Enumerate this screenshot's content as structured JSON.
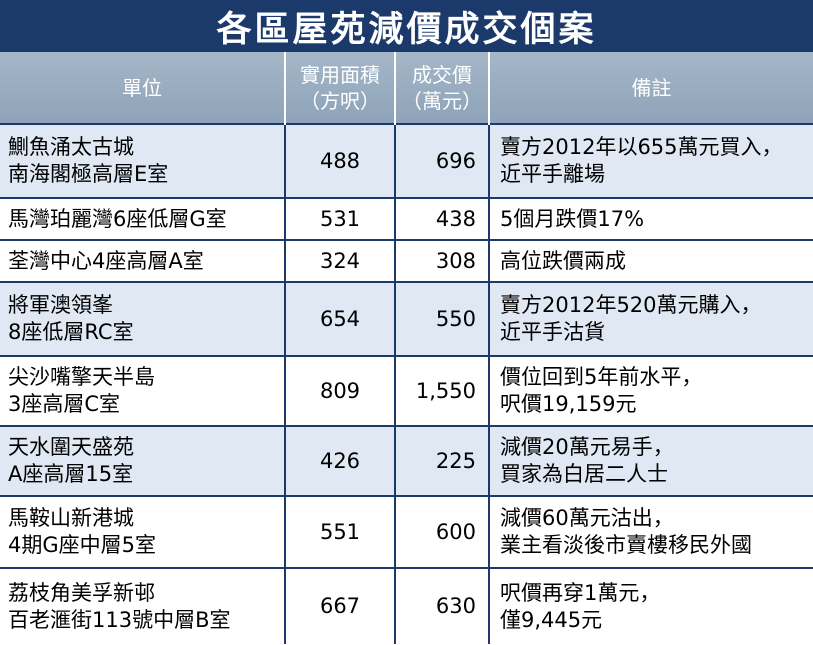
{
  "title": "各區屋苑減價成交個案",
  "headers": {
    "unit": "單位",
    "area": [
      "實用面積",
      "（方呎）"
    ],
    "price": [
      "成交價",
      "（萬元）"
    ],
    "note": "備註"
  },
  "rows": [
    {
      "unit": [
        "鰂魚涌太古城",
        "南海閣極高層E室"
      ],
      "area": "488",
      "price": "696",
      "note": [
        "賣方2012年以655萬元買入，",
        "近平手離場"
      ]
    },
    {
      "unit": [
        "馬灣珀麗灣6座低層G室"
      ],
      "area": "531",
      "price": "438",
      "note": [
        "5個月跌價17%"
      ]
    },
    {
      "unit": [
        "荃灣中心4座高層A室"
      ],
      "area": "324",
      "price": "308",
      "note": [
        "高位跌價兩成"
      ]
    },
    {
      "unit": [
        "將軍澳領峯",
        "8座低層RC室"
      ],
      "area": "654",
      "price": "550",
      "note": [
        "賣方2012年520萬元購入，",
        "近平手沽貨"
      ]
    },
    {
      "unit": [
        "尖沙嘴擎天半島",
        "3座高層C室"
      ],
      "area": "809",
      "price": "1,550",
      "note": [
        "價位回到5年前水平，",
        "呎價19,159元"
      ]
    },
    {
      "unit": [
        "天水圍天盛苑",
        "A座高層15室"
      ],
      "area": "426",
      "price": "225",
      "note": [
        "減價20萬元易手，",
        "買家為白居二人士"
      ]
    },
    {
      "unit": [
        "馬鞍山新港城",
        "4期G座中層5室"
      ],
      "area": "551",
      "price": "600",
      "note": [
        "減價60萬元沽出，",
        "業主看淡後市賣樓移民外國"
      ]
    },
    {
      "unit": [
        "荔枝角美孚新邨",
        "百老滙街113號中層B室"
      ],
      "area": "667",
      "price": "630",
      "note": [
        "呎價再穿1萬元，",
        "僅9,445元"
      ]
    }
  ]
}
